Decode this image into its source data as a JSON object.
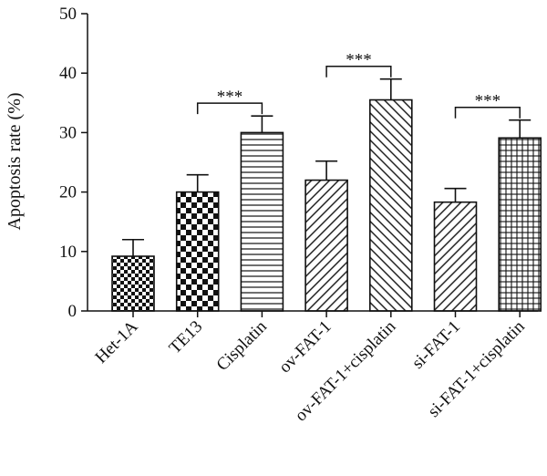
{
  "chart_data": {
    "type": "bar",
    "title": "",
    "xlabel": "",
    "ylabel": "Apoptosis rate (%)",
    "ylim": [
      0,
      50
    ],
    "yticks": [
      0,
      10,
      20,
      30,
      40,
      50
    ],
    "categories": [
      "Het-1A",
      "TE13",
      "Cisplatin",
      "ov-FAT-1",
      "ov-FAT-1+cisplatin",
      "si-FAT-1",
      "si-FAT-1+cisplatin"
    ],
    "values": [
      9.2,
      20.0,
      30.0,
      22.0,
      35.5,
      18.3,
      29.1
    ],
    "errors": [
      2.8,
      2.9,
      2.8,
      3.2,
      3.5,
      2.3,
      3.0
    ],
    "patterns": [
      "checker-small",
      "checker-large",
      "horizontal-lines",
      "diagonal-back",
      "diagonal-forward",
      "diagonal-back",
      "grid"
    ],
    "significance": [
      {
        "from": 1,
        "to": 2,
        "label": "***"
      },
      {
        "from": 3,
        "to": 4,
        "label": "***"
      },
      {
        "from": 5,
        "to": 6,
        "label": "***"
      }
    ],
    "grid": false,
    "legend": "none"
  }
}
